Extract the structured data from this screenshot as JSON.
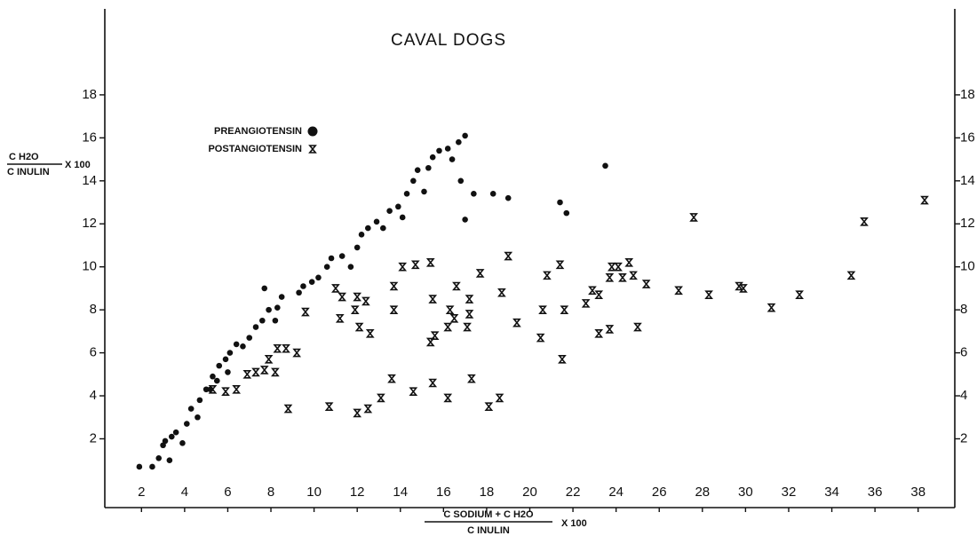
{
  "chart_data": {
    "type": "scatter",
    "title": "CAVAL DOGS",
    "y_label": {
      "numerator": "C H2O",
      "denominator": "C INULIN",
      "suffix": "X 100"
    },
    "x_label": {
      "numerator": "C SODIUM + C H2O",
      "denominator": "C INULIN",
      "suffix": "X 100"
    },
    "xlim": [
      0.3,
      39.7
    ],
    "ylim": [
      -1.2,
      22
    ],
    "xticks": [
      2,
      4,
      6,
      8,
      10,
      12,
      14,
      16,
      18,
      20,
      22,
      24,
      26,
      28,
      30,
      32,
      34,
      36,
      38
    ],
    "yticks": [
      2,
      4,
      6,
      8,
      10,
      12,
      14,
      16,
      18
    ],
    "legend": "upper left",
    "series": [
      {
        "name": "PREANGIOTENSIN",
        "marker": "dot",
        "color": "#111111",
        "x": [
          1.9,
          2.5,
          2.8,
          3.0,
          3.1,
          3.3,
          3.4,
          3.6,
          3.9,
          4.1,
          4.3,
          4.6,
          4.7,
          5.0,
          5.2,
          5.3,
          5.5,
          5.6,
          5.9,
          6.0,
          6.1,
          6.4,
          6.7,
          7.0,
          7.3,
          7.6,
          7.7,
          7.9,
          8.2,
          8.3,
          8.5,
          9.3,
          9.5,
          9.9,
          10.2,
          10.6,
          10.8,
          11.3,
          11.7,
          12.0,
          12.2,
          12.5,
          12.9,
          13.2,
          13.5,
          13.9,
          14.1,
          14.3,
          14.6,
          14.8,
          15.1,
          15.3,
          15.5,
          15.8,
          16.2,
          16.4,
          16.8,
          17.0,
          17.4,
          16.7,
          17.0,
          18.3,
          19.0,
          21.4,
          21.7,
          23.5
        ],
        "values": [
          0.7,
          0.7,
          1.1,
          1.7,
          1.9,
          1.0,
          2.1,
          2.3,
          1.8,
          2.7,
          3.4,
          3.0,
          3.8,
          4.3,
          4.3,
          4.9,
          4.7,
          5.4,
          5.7,
          5.1,
          6.0,
          6.4,
          6.3,
          6.7,
          7.2,
          7.5,
          9.0,
          8.0,
          7.5,
          8.1,
          8.6,
          8.8,
          9.1,
          9.3,
          9.5,
          10.0,
          10.4,
          10.5,
          10.0,
          10.9,
          11.5,
          11.8,
          12.1,
          11.8,
          12.6,
          12.8,
          12.3,
          13.4,
          14.0,
          14.5,
          13.5,
          14.6,
          15.1,
          15.4,
          15.5,
          15.0,
          14.0,
          12.2,
          13.4,
          15.8,
          16.1,
          13.4,
          13.2,
          13.0,
          12.5,
          14.7
        ]
      },
      {
        "name": "POSTANGIOTENSIN",
        "marker": "x",
        "color": "#111111",
        "x": [
          8.8,
          10.7,
          12.0,
          12.5,
          13.1,
          13.6,
          14.6,
          15.5,
          16.2,
          17.3,
          18.1,
          18.6,
          5.3,
          5.9,
          6.4,
          6.9,
          7.3,
          7.7,
          7.9,
          8.2,
          8.3,
          8.7,
          9.2,
          9.6,
          11.0,
          11.3,
          11.2,
          11.9,
          12.0,
          12.1,
          12.4,
          12.6,
          13.7,
          13.7,
          14.1,
          14.7,
          15.4,
          15.5,
          15.4,
          15.6,
          16.2,
          16.3,
          16.5,
          16.6,
          17.1,
          17.2,
          17.2,
          17.7,
          18.7,
          19.0,
          19.4,
          20.5,
          20.6,
          20.8,
          21.4,
          21.5,
          21.6,
          22.6,
          22.9,
          23.2,
          23.2,
          23.7,
          23.7,
          23.8,
          24.1,
          24.3,
          24.6,
          24.8,
          25.0,
          25.4,
          26.9,
          27.6,
          28.3,
          29.7,
          29.9,
          31.2,
          32.5,
          34.9,
          35.5,
          38.3
        ],
        "values": [
          3.4,
          3.5,
          3.2,
          3.4,
          3.9,
          4.8,
          4.2,
          4.6,
          3.9,
          4.8,
          3.5,
          3.9,
          4.3,
          4.2,
          4.3,
          5.0,
          5.1,
          5.2,
          5.7,
          5.1,
          6.2,
          6.2,
          6.0,
          7.9,
          9.0,
          8.6,
          7.6,
          8.0,
          8.6,
          7.2,
          8.4,
          6.9,
          8.0,
          9.1,
          10.0,
          10.1,
          10.2,
          8.5,
          6.5,
          6.8,
          7.2,
          8.0,
          7.6,
          9.1,
          7.2,
          7.8,
          8.5,
          9.7,
          8.8,
          10.5,
          7.4,
          6.7,
          8.0,
          9.6,
          10.1,
          5.7,
          8.0,
          8.3,
          8.9,
          8.7,
          6.9,
          9.5,
          7.1,
          10.0,
          10.0,
          9.5,
          10.2,
          9.6,
          7.2,
          9.2,
          8.9,
          12.3,
          8.7,
          9.1,
          9.0,
          8.1,
          8.7,
          9.6,
          12.1,
          13.1
        ]
      }
    ]
  }
}
